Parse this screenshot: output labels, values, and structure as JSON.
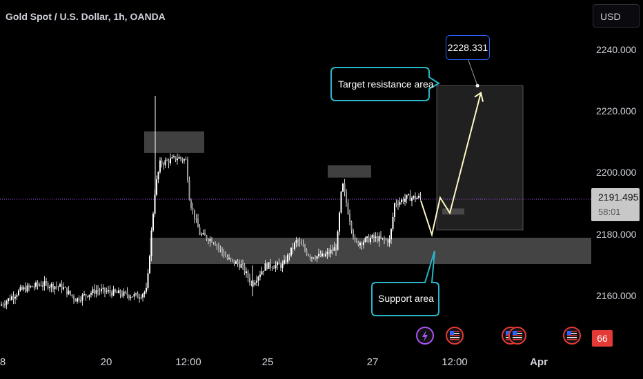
{
  "header": {
    "title": "Gold Spot / U.S. Dollar, 1h, OANDA",
    "currency": "USD"
  },
  "price_axis": {
    "last_price": "2191.495",
    "countdown": "58:01"
  },
  "event_badge_count": "66",
  "colors": {
    "background": "#000000",
    "candle": "#ffffff",
    "accent_cyan": "#2bb6c9",
    "path": "#fff9c4",
    "price_line": "#a855f7",
    "zone": "#555555",
    "target_box": "#3a3a3a",
    "badge_red": "#e53935"
  },
  "annotations": {
    "target_label": "Target resistance area",
    "target_value": "2228.331",
    "support_label": "Support area"
  },
  "chart_data": {
    "type": "candlestick",
    "title": "Gold Spot / U.S. Dollar, 1h, OANDA",
    "y_axis": {
      "label": "USD",
      "ticks": [
        2160,
        2180,
        2200,
        2220,
        2240
      ],
      "tick_labels": [
        "2160.000",
        "2180.000",
        "2200.000",
        "2220.000",
        "2240.000"
      ],
      "range": [
        2148,
        2250
      ]
    },
    "x_axis": {
      "ticks": [
        "8",
        "20",
        "12:00",
        "25",
        "27",
        "12:00",
        "Apr"
      ],
      "bold": [
        "Apr"
      ]
    },
    "last_price": 2191.495,
    "price_path": [
      {
        "x": 0,
        "y": 2157
      },
      {
        "x": 30,
        "y": 2162
      },
      {
        "x": 60,
        "y": 2164
      },
      {
        "x": 90,
        "y": 2163
      },
      {
        "x": 110,
        "y": 2159
      },
      {
        "x": 140,
        "y": 2162
      },
      {
        "x": 170,
        "y": 2161
      },
      {
        "x": 200,
        "y": 2160
      },
      {
        "x": 213,
        "y": 2162
      },
      {
        "x": 218,
        "y": 2177
      },
      {
        "x": 225,
        "y": 2195
      },
      {
        "x": 232,
        "y": 2203
      },
      {
        "x": 245,
        "y": 2204
      },
      {
        "x": 258,
        "y": 2205
      },
      {
        "x": 270,
        "y": 2204
      },
      {
        "x": 275,
        "y": 2191
      },
      {
        "x": 290,
        "y": 2180
      },
      {
        "x": 310,
        "y": 2178
      },
      {
        "x": 330,
        "y": 2172
      },
      {
        "x": 350,
        "y": 2170
      },
      {
        "x": 365,
        "y": 2164
      },
      {
        "x": 385,
        "y": 2170
      },
      {
        "x": 410,
        "y": 2170
      },
      {
        "x": 430,
        "y": 2178
      },
      {
        "x": 450,
        "y": 2173
      },
      {
        "x": 470,
        "y": 2173
      },
      {
        "x": 488,
        "y": 2176
      },
      {
        "x": 496,
        "y": 2197
      },
      {
        "x": 505,
        "y": 2187
      },
      {
        "x": 515,
        "y": 2177
      },
      {
        "x": 540,
        "y": 2179
      },
      {
        "x": 565,
        "y": 2178
      },
      {
        "x": 572,
        "y": 2190
      },
      {
        "x": 590,
        "y": 2192
      },
      {
        "x": 610,
        "y": 2192
      }
    ],
    "zones": [
      {
        "name": "resistance-zone-1",
        "x0": 209,
        "x1": 296,
        "y0": 2206.5,
        "y1": 2213.5
      },
      {
        "name": "resistance-zone-2",
        "x0": 475,
        "x1": 538,
        "y0": 2198.5,
        "y1": 2202.5
      },
      {
        "name": "support-area",
        "x0": 217,
        "x1": 857,
        "y0": 2170.5,
        "y1": 2179
      },
      {
        "name": "target-box",
        "x0": 633,
        "x1": 758,
        "y0": 2181.5,
        "y1": 2228.3
      },
      {
        "name": "small-marker",
        "x0": 641,
        "x1": 673,
        "y0": 2186.5,
        "y1": 2188.5
      }
    ],
    "projection": [
      {
        "x": 610,
        "y": 2191
      },
      {
        "x": 626,
        "y": 2180
      },
      {
        "x": 638,
        "y": 2192
      },
      {
        "x": 652,
        "y": 2187
      },
      {
        "x": 697,
        "y": 2226
      }
    ],
    "target_point": {
      "x": 692,
      "y": 2228.331
    }
  }
}
